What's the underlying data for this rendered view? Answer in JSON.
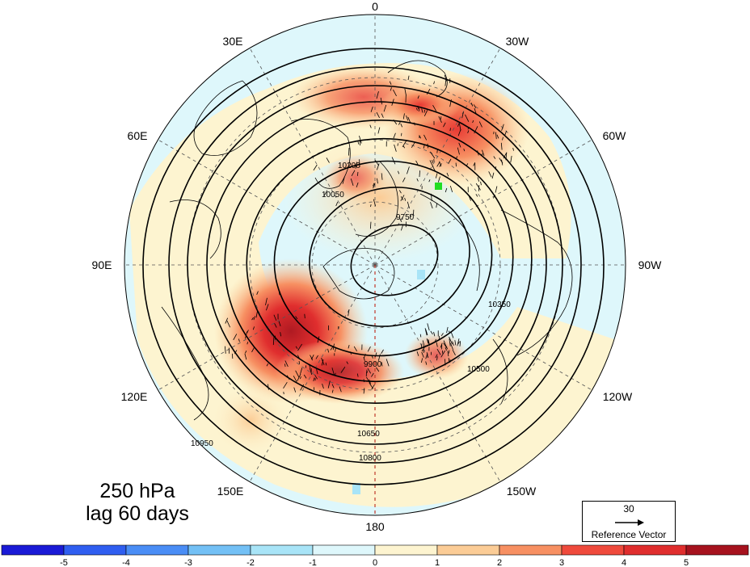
{
  "panel": {
    "level": "250 hPa",
    "lag": "lag 60 days"
  },
  "longitude_labels": [
    "0",
    "30W",
    "60W",
    "90W",
    "120W",
    "150W",
    "180",
    "150E",
    "120E",
    "90E",
    "60E",
    "30E"
  ],
  "contour_labels": [
    "9750",
    "9900",
    "10050",
    "10200",
    "10350",
    "10500",
    "10650",
    "10800",
    "10950"
  ],
  "reference_vector": {
    "magnitude": "30",
    "caption": "Reference Vector"
  },
  "colorbar": {
    "ticks": [
      "-5",
      "-4",
      "-3",
      "-2",
      "-1",
      "0",
      "1",
      "2",
      "3",
      "4",
      "5"
    ],
    "colors": [
      "#1a1ad6",
      "#2f5ef0",
      "#4a8df5",
      "#73c0f5",
      "#a8e4f7",
      "#def7fb",
      "#fdf4d0",
      "#fbcc96",
      "#f79062",
      "#ef4a3c",
      "#e02e2e",
      "#a6121e"
    ]
  },
  "colors": {
    "ocean_neutral": "#def7fb",
    "land_warm": "#fdf4d0",
    "anomaly_marker": "#22dd22"
  }
}
